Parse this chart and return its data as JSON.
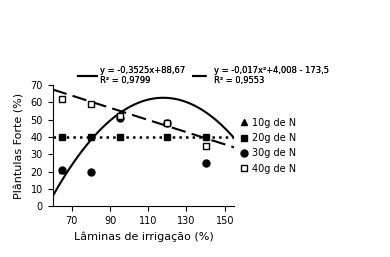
{
  "x_10g": [
    65
  ],
  "y_10g": [
    21
  ],
  "x_20g": [
    65,
    80,
    95,
    120,
    140
  ],
  "y_20g": [
    40,
    40,
    40,
    40,
    40
  ],
  "x_30g": [
    65,
    80,
    95,
    120,
    140
  ],
  "y_30g": [
    21,
    20,
    51,
    48,
    25
  ],
  "x_40g": [
    65,
    80,
    95,
    120,
    140
  ],
  "y_40g": [
    62,
    59,
    52,
    48,
    35
  ],
  "linear_eq": "y = -0,3525x+88,67",
  "linear_r2": "R² = 0,9799",
  "quad_eq": "y = -0,017x²+4,008 - 173,5",
  "quad_r2": "R² = 0,9553",
  "xlabel": "Lâminas de irrigação (%)",
  "ylabel": "Plântulas Forte (%)",
  "xlim": [
    60,
    155
  ],
  "ylim": [
    0,
    70
  ],
  "xticks": [
    70,
    90,
    110,
    130,
    150
  ],
  "yticks": [
    0,
    10,
    20,
    30,
    40,
    50,
    60,
    70
  ],
  "legend_10g": "10g de N",
  "legend_20g": "20g de N",
  "legend_30g": "30g de N",
  "legend_40g": "40g de N",
  "color": "black",
  "figsize": [
    3.9,
    2.57
  ],
  "dpi": 100
}
